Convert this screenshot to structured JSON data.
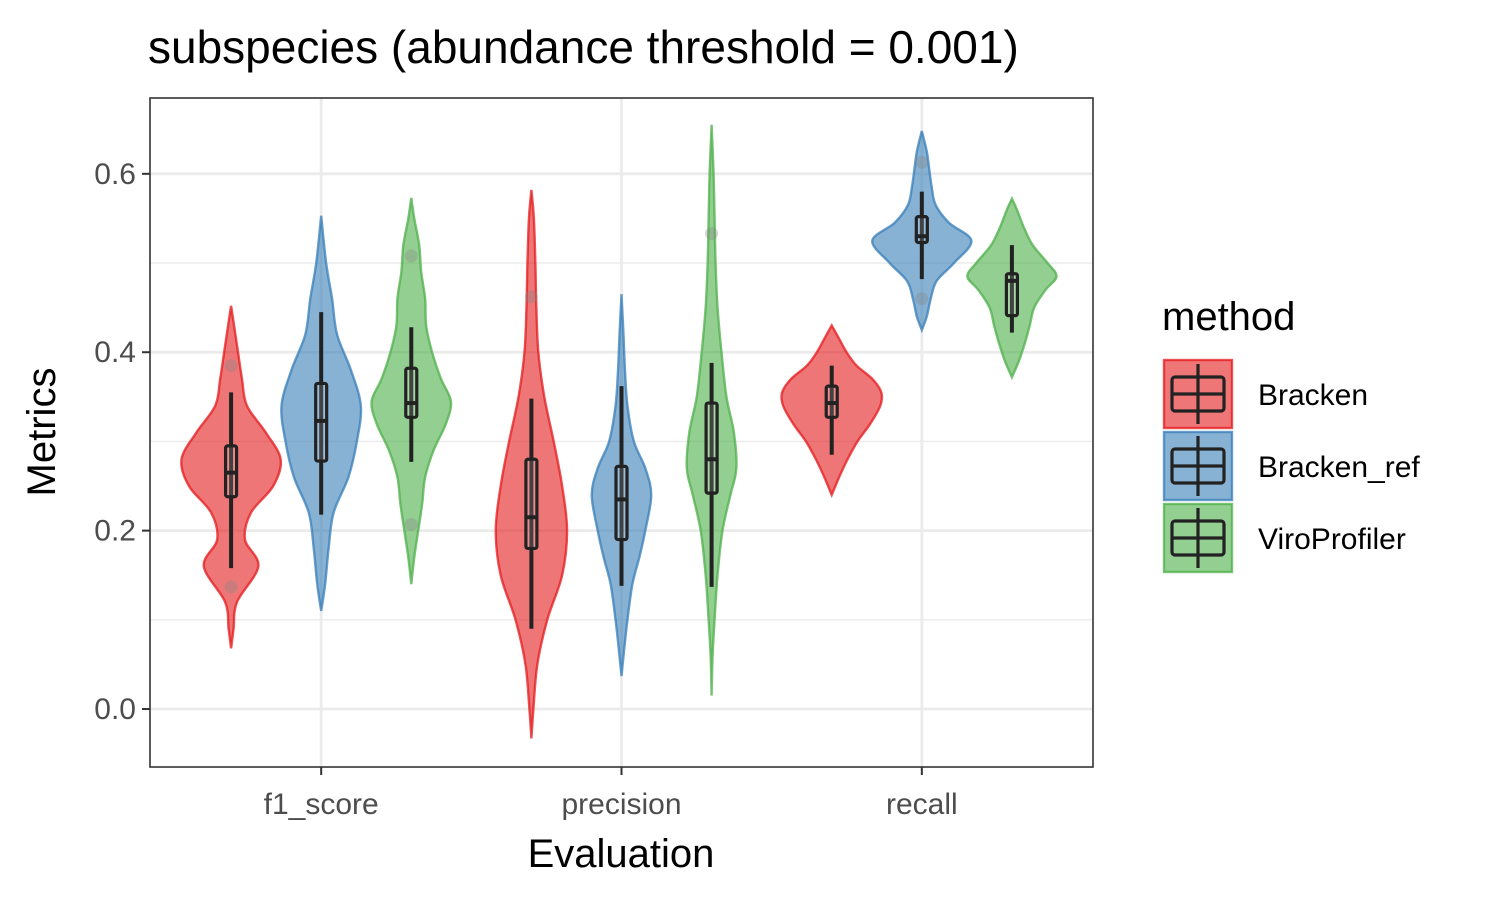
{
  "chart_data": {
    "type": "violin",
    "title": "subspecies (abundance threshold = 0.001)",
    "xlabel": "Evaluation",
    "ylabel": "Metrics",
    "categories": [
      "f1_score",
      "precision",
      "recall"
    ],
    "ylim": [
      -0.065,
      0.685
    ],
    "yticks": [
      0.0,
      0.2,
      0.4,
      0.6
    ],
    "ytick_labels": [
      "0.0",
      "0.2",
      "0.4",
      "0.6"
    ],
    "grid": true,
    "legend": {
      "title": "method",
      "position": "right"
    },
    "series": [
      {
        "name": "Bracken",
        "color": "#E41A1C",
        "groups": [
          {
            "category": "f1_score",
            "min": 0.068,
            "max": 0.452,
            "density": [
              [
                0.068,
                0.0
              ],
              [
                0.09,
                0.05
              ],
              [
                0.12,
                0.12
              ],
              [
                0.16,
                0.55
              ],
              [
                0.19,
                0.28
              ],
              [
                0.22,
                0.4
              ],
              [
                0.25,
                0.85
              ],
              [
                0.28,
                1.0
              ],
              [
                0.31,
                0.7
              ],
              [
                0.34,
                0.32
              ],
              [
                0.37,
                0.22
              ],
              [
                0.4,
                0.14
              ],
              [
                0.43,
                0.06
              ],
              [
                0.452,
                0.0
              ]
            ],
            "box": {
              "lower_whisker": 0.158,
              "q1": 0.238,
              "median": 0.265,
              "q3": 0.295,
              "upper_whisker": 0.355
            },
            "outliers": [
              0.137,
              0.385
            ]
          },
          {
            "category": "precision",
            "min": -0.033,
            "max": 0.582,
            "density": [
              [
                -0.033,
                0.0
              ],
              [
                0.0,
                0.04
              ],
              [
                0.05,
                0.12
              ],
              [
                0.1,
                0.32
              ],
              [
                0.15,
                0.62
              ],
              [
                0.2,
                0.72
              ],
              [
                0.25,
                0.62
              ],
              [
                0.3,
                0.45
              ],
              [
                0.35,
                0.26
              ],
              [
                0.4,
                0.14
              ],
              [
                0.45,
                0.1
              ],
              [
                0.5,
                0.08
              ],
              [
                0.55,
                0.05
              ],
              [
                0.582,
                0.0
              ]
            ],
            "box": {
              "lower_whisker": 0.09,
              "q1": 0.18,
              "median": 0.215,
              "q3": 0.28,
              "upper_whisker": 0.348
            },
            "outliers": [
              0.462
            ]
          },
          {
            "category": "recall",
            "min": 0.24,
            "max": 0.43,
            "density": [
              [
                0.24,
                0.0
              ],
              [
                0.26,
                0.15
              ],
              [
                0.28,
                0.32
              ],
              [
                0.3,
                0.52
              ],
              [
                0.32,
                0.78
              ],
              [
                0.34,
                0.98
              ],
              [
                0.355,
                1.0
              ],
              [
                0.37,
                0.82
              ],
              [
                0.385,
                0.5
              ],
              [
                0.4,
                0.3
              ],
              [
                0.415,
                0.15
              ],
              [
                0.43,
                0.0
              ]
            ],
            "box": {
              "lower_whisker": 0.285,
              "q1": 0.327,
              "median": 0.343,
              "q3": 0.362,
              "upper_whisker": 0.385
            },
            "outliers": []
          }
        ]
      },
      {
        "name": "Bracken_ref",
        "color": "#377EB8",
        "groups": [
          {
            "category": "f1_score",
            "min": 0.11,
            "max": 0.553,
            "density": [
              [
                0.11,
                0.0
              ],
              [
                0.14,
                0.08
              ],
              [
                0.18,
                0.15
              ],
              [
                0.22,
                0.25
              ],
              [
                0.26,
                0.55
              ],
              [
                0.3,
                0.72
              ],
              [
                0.34,
                0.8
              ],
              [
                0.38,
                0.6
              ],
              [
                0.42,
                0.32
              ],
              [
                0.46,
                0.22
              ],
              [
                0.5,
                0.1
              ],
              [
                0.553,
                0.0
              ]
            ],
            "box": {
              "lower_whisker": 0.218,
              "q1": 0.278,
              "median": 0.323,
              "q3": 0.365,
              "upper_whisker": 0.445
            },
            "outliers": []
          },
          {
            "category": "precision",
            "min": 0.037,
            "max": 0.465,
            "density": [
              [
                0.037,
                0.0
              ],
              [
                0.07,
                0.06
              ],
              [
                0.1,
                0.12
              ],
              [
                0.14,
                0.22
              ],
              [
                0.17,
                0.36
              ],
              [
                0.2,
                0.48
              ],
              [
                0.24,
                0.6
              ],
              [
                0.27,
                0.48
              ],
              [
                0.3,
                0.25
              ],
              [
                0.34,
                0.12
              ],
              [
                0.38,
                0.07
              ],
              [
                0.42,
                0.04
              ],
              [
                0.465,
                0.0
              ]
            ],
            "box": {
              "lower_whisker": 0.138,
              "q1": 0.19,
              "median": 0.235,
              "q3": 0.272,
              "upper_whisker": 0.362
            },
            "outliers": []
          },
          {
            "category": "recall",
            "min": 0.425,
            "max": 0.648,
            "density": [
              [
                0.425,
                0.0
              ],
              [
                0.44,
                0.1
              ],
              [
                0.46,
                0.18
              ],
              [
                0.48,
                0.3
              ],
              [
                0.5,
                0.65
              ],
              [
                0.525,
                1.0
              ],
              [
                0.545,
                0.55
              ],
              [
                0.565,
                0.28
              ],
              [
                0.585,
                0.2
              ],
              [
                0.605,
                0.15
              ],
              [
                0.625,
                0.1
              ],
              [
                0.648,
                0.0
              ]
            ],
            "box": {
              "lower_whisker": 0.482,
              "q1": 0.523,
              "median": 0.53,
              "q3": 0.552,
              "upper_whisker": 0.58
            },
            "outliers": [
              0.46,
              0.613
            ]
          }
        ]
      },
      {
        "name": "ViroProfiler",
        "color": "#4DAF4A",
        "groups": [
          {
            "category": "f1_score",
            "min": 0.14,
            "max": 0.573,
            "density": [
              [
                0.14,
                0.0
              ],
              [
                0.17,
                0.06
              ],
              [
                0.2,
                0.14
              ],
              [
                0.23,
                0.22
              ],
              [
                0.26,
                0.28
              ],
              [
                0.29,
                0.45
              ],
              [
                0.32,
                0.7
              ],
              [
                0.345,
                0.8
              ],
              [
                0.37,
                0.6
              ],
              [
                0.4,
                0.42
              ],
              [
                0.43,
                0.3
              ],
              [
                0.46,
                0.28
              ],
              [
                0.49,
                0.2
              ],
              [
                0.52,
                0.16
              ],
              [
                0.55,
                0.06
              ],
              [
                0.573,
                0.0
              ]
            ],
            "box": {
              "lower_whisker": 0.277,
              "q1": 0.327,
              "median": 0.343,
              "q3": 0.382,
              "upper_whisker": 0.428
            },
            "outliers": [
              0.207,
              0.508
            ]
          },
          {
            "category": "precision",
            "min": 0.015,
            "max": 0.655,
            "density": [
              [
                0.015,
                0.0
              ],
              [
                0.06,
                0.02
              ],
              [
                0.1,
                0.06
              ],
              [
                0.15,
                0.12
              ],
              [
                0.2,
                0.22
              ],
              [
                0.24,
                0.38
              ],
              [
                0.27,
                0.5
              ],
              [
                0.31,
                0.45
              ],
              [
                0.35,
                0.3
              ],
              [
                0.4,
                0.2
              ],
              [
                0.45,
                0.12
              ],
              [
                0.5,
                0.08
              ],
              [
                0.55,
                0.06
              ],
              [
                0.6,
                0.04
              ],
              [
                0.655,
                0.0
              ]
            ],
            "box": {
              "lower_whisker": 0.137,
              "q1": 0.242,
              "median": 0.28,
              "q3": 0.343,
              "upper_whisker": 0.388
            },
            "outliers": [
              0.533
            ]
          },
          {
            "category": "recall",
            "min": 0.372,
            "max": 0.572,
            "density": [
              [
                0.372,
                0.0
              ],
              [
                0.39,
                0.14
              ],
              [
                0.41,
                0.26
              ],
              [
                0.43,
                0.36
              ],
              [
                0.45,
                0.45
              ],
              [
                0.47,
                0.68
              ],
              [
                0.485,
                0.9
              ],
              [
                0.5,
                0.72
              ],
              [
                0.52,
                0.42
              ],
              [
                0.54,
                0.24
              ],
              [
                0.56,
                0.1
              ],
              [
                0.572,
                0.0
              ]
            ],
            "box": {
              "lower_whisker": 0.422,
              "q1": 0.441,
              "median": 0.48,
              "q3": 0.488,
              "upper_whisker": 0.52
            },
            "outliers": []
          }
        ]
      }
    ]
  }
}
